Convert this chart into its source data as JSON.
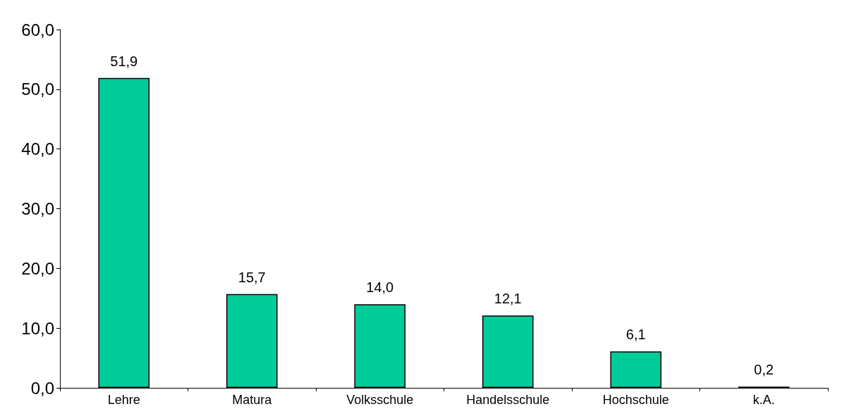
{
  "chart_data": {
    "type": "bar",
    "categories": [
      "Lehre",
      "Matura",
      "Volksschule",
      "Handelsschule",
      "Hochschule",
      "k.A."
    ],
    "values": [
      51.9,
      15.7,
      14.0,
      12.1,
      6.1,
      0.2
    ],
    "value_labels": [
      "51,9",
      "15,7",
      "14,0",
      "12,1",
      "6,1",
      "0,2"
    ],
    "color": "#00cc99",
    "ylim": [
      0,
      60
    ],
    "yticks": [
      {
        "value": 0,
        "label": "0,0"
      },
      {
        "value": 10,
        "label": "10,0"
      },
      {
        "value": 20,
        "label": "20,0"
      },
      {
        "value": 30,
        "label": "30,0"
      },
      {
        "value": 40,
        "label": "40,0"
      },
      {
        "value": 50,
        "label": "50,0"
      },
      {
        "value": 60,
        "label": "60,0"
      }
    ],
    "grid": false
  }
}
